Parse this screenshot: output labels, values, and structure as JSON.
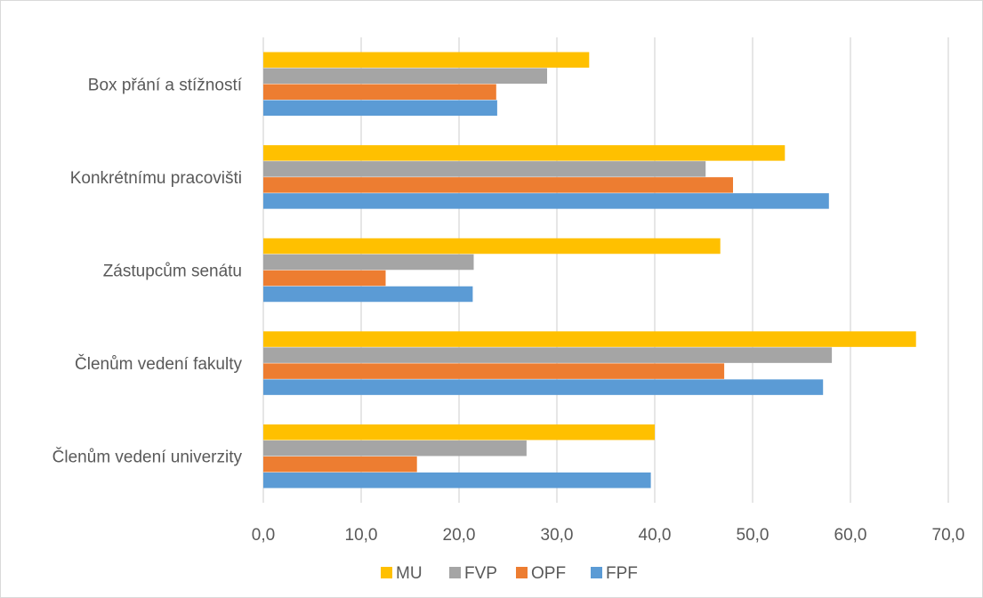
{
  "chart_data": {
    "type": "bar",
    "orientation": "horizontal",
    "categories": [
      "Box přání a stížností",
      "Konkrétnímu pracovišti",
      "Zástupcům senátu",
      "Členům vedení fakulty",
      "Členům vedení univerzity"
    ],
    "series": [
      {
        "name": "MU",
        "color": "#FFC000",
        "values": [
          33.3,
          53.3,
          46.7,
          66.7,
          40.0
        ]
      },
      {
        "name": "FVP",
        "color": "#A5A5A5",
        "values": [
          29.0,
          45.2,
          21.5,
          58.1,
          26.9
        ]
      },
      {
        "name": "OPF",
        "color": "#ED7D31",
        "values": [
          23.8,
          48.0,
          12.5,
          47.1,
          15.7
        ]
      },
      {
        "name": "FPF",
        "color": "#5B9BD5",
        "values": [
          23.9,
          57.8,
          21.4,
          57.2,
          39.6
        ]
      }
    ],
    "xlim": [
      0,
      70
    ],
    "xticks": [
      "0,0",
      "10,0",
      "20,0",
      "30,0",
      "40,0",
      "50,0",
      "60,0",
      "70,0"
    ],
    "grid": true,
    "legend_position": "bottom"
  }
}
